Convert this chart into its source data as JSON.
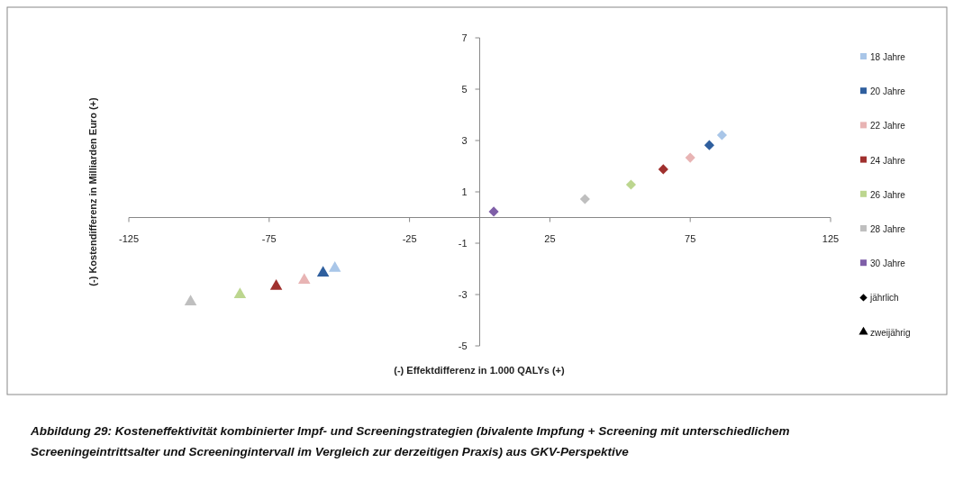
{
  "chart_data": {
    "type": "scatter",
    "title": "Abbildung 29: Kosteneffektivität kombinierter Impf- und Screeningstrategien (bivalente Impfung + Screening mit unterschiedlichem Screeningeintrittsalter und Screeningintervall im Vergleich zur derzeitigen Praxis) aus GKV-Perspektive",
    "xlabel": "(-) Effektdifferenz in  1.000 QALYs (+)",
    "ylabel": "(-) Kostendifferenz in Milliarden Euro (+)",
    "xlim": [
      -125,
      125
    ],
    "ylim": [
      -5,
      7
    ],
    "xticks": [
      -125,
      -75,
      -25,
      25,
      75,
      125
    ],
    "yticks": [
      7,
      5,
      3,
      1,
      -1,
      -3,
      -5
    ],
    "grid": false,
    "legend": "right",
    "series": [
      {
        "name": "18 Jahre",
        "color": "#a9c6e8",
        "marker": "diamond",
        "x": [
          86.3
        ],
        "values": [
          3.21
        ]
      },
      {
        "name": "20 Jahre",
        "color": "#2f5f9e",
        "marker": "diamond",
        "x": [
          81.8
        ],
        "values": [
          2.82
        ]
      },
      {
        "name": "22 Jahre",
        "color": "#e8b4b4",
        "marker": "diamond",
        "x": [
          75
        ],
        "values": [
          2.33
        ]
      },
      {
        "name": "24 Jahre",
        "color": "#a0302e",
        "marker": "diamond",
        "x": [
          65.4
        ],
        "values": [
          1.88
        ]
      },
      {
        "name": "26 Jahre",
        "color": "#bcd68f",
        "marker": "diamond",
        "x": [
          53.9
        ],
        "values": [
          1.28
        ]
      },
      {
        "name": "28 Jahre",
        "color": "#bfbfbf",
        "marker": "diamond",
        "x": [
          37.5
        ],
        "values": [
          0.72
        ]
      },
      {
        "name": "30 Jahre",
        "color": "#7f5fa8",
        "marker": "diamond",
        "x": [
          5
        ],
        "values": [
          0.23
        ]
      },
      {
        "color": "#a9c6e8",
        "marker": "triangle",
        "x": [
          -51.6
        ],
        "values": [
          -1.98
        ]
      },
      {
        "color": "#2f5f9e",
        "marker": "triangle",
        "x": [
          -55.8
        ],
        "values": [
          -2.16
        ]
      },
      {
        "color": "#e8b4b4",
        "marker": "triangle",
        "x": [
          -62.5
        ],
        "values": [
          -2.44
        ]
      },
      {
        "color": "#a0302e",
        "marker": "triangle",
        "x": [
          -72.5
        ],
        "values": [
          -2.68
        ]
      },
      {
        "color": "#bcd68f",
        "marker": "triangle",
        "x": [
          -85.4
        ],
        "values": [
          -3.0
        ]
      },
      {
        "color": "#bfbfbf",
        "marker": "triangle",
        "x": [
          -103
        ],
        "values": [
          -3.28
        ]
      },
      {
        "name": "jährlich",
        "color": "#000000",
        "marker": "diamond"
      },
      {
        "name": "zweijährig",
        "color": "#000000",
        "marker": "triangle"
      }
    ]
  }
}
